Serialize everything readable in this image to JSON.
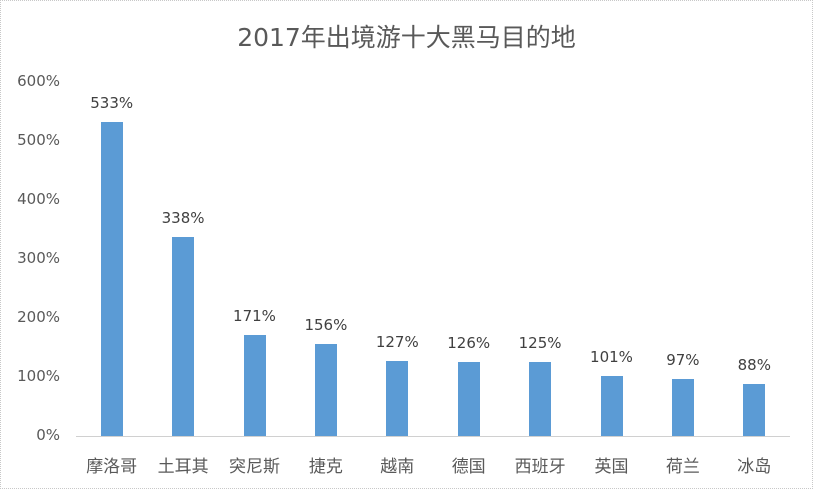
{
  "chart_data": {
    "type": "bar",
    "title": "2017年出境游十大黑马目的地",
    "xlabel": "",
    "ylabel": "",
    "categories": [
      "摩洛哥",
      "土耳其",
      "突尼斯",
      "捷克",
      "越南",
      "德国",
      "西班牙",
      "英国",
      "荷兰",
      "冰岛"
    ],
    "values": [
      533,
      338,
      171,
      156,
      127,
      126,
      125,
      101,
      97,
      88
    ],
    "value_labels": [
      "533%",
      "338%",
      "171%",
      "156%",
      "127%",
      "126%",
      "125%",
      "101%",
      "97%",
      "88%"
    ],
    "unit": "%",
    "ylim": [
      0,
      600
    ],
    "yticks": [
      "0%",
      "100%",
      "200%",
      "300%",
      "400%",
      "500%",
      "600%"
    ],
    "grid": false,
    "legend": "none",
    "bar_color": "#5b9bd5"
  }
}
